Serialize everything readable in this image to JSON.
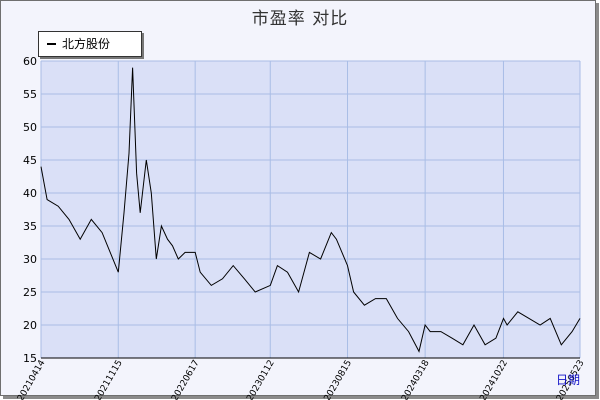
{
  "title": "市盈率  对比",
  "legend": {
    "label": "北方股份"
  },
  "xlabel": "日期",
  "colors": {
    "plot_bg": "#dae0f7",
    "grid": "#a9bde6",
    "line": "#000000",
    "xlabel": "#1414c8"
  },
  "chart_data": {
    "type": "line",
    "title": "市盈率  对比",
    "xlabel": "日期",
    "ylabel": "",
    "ylim": [
      15,
      60
    ],
    "yticks": [
      15,
      20,
      25,
      30,
      35,
      40,
      45,
      50,
      55,
      60
    ],
    "xticks": [
      "20210414",
      "20211115",
      "20220617",
      "20230112",
      "20230815",
      "20240318",
      "20241022",
      "20250523"
    ],
    "grid": true,
    "legend_position": "top-left",
    "series": [
      {
        "name": "北方股份",
        "x": [
          "20210414",
          "20210501",
          "20210601",
          "20210701",
          "20210801",
          "20210901",
          "20211001",
          "20211115",
          "20211201",
          "20211215",
          "20211225",
          "20220105",
          "20220115",
          "20220201",
          "20220215",
          "20220301",
          "20220315",
          "20220401",
          "20220415",
          "20220501",
          "20220520",
          "20220617",
          "20220701",
          "20220801",
          "20220901",
          "20221001",
          "20221101",
          "20221201",
          "20230112",
          "20230201",
          "20230301",
          "20230401",
          "20230501",
          "20230601",
          "20230701",
          "20230715",
          "20230815",
          "20230901",
          "20231001",
          "20231101",
          "20231201",
          "20240101",
          "20240201",
          "20240301",
          "20240318",
          "20240401",
          "20240501",
          "20240601",
          "20240701",
          "20240801",
          "20240901",
          "20241001",
          "20241022",
          "20241101",
          "20241201",
          "20250101",
          "20250201",
          "20250301",
          "20250401",
          "20250501",
          "20250523"
        ],
        "values": [
          44,
          39,
          38,
          36,
          33,
          36,
          34,
          28,
          37,
          46,
          59,
          43,
          37,
          45,
          40,
          30,
          35,
          33,
          32,
          30,
          31,
          31,
          28,
          26,
          27,
          29,
          27,
          25,
          26,
          29,
          28,
          25,
          31,
          30,
          34,
          33,
          29,
          25,
          23,
          24,
          24,
          21,
          19,
          16,
          20,
          19,
          19,
          18,
          17,
          20,
          17,
          18,
          21,
          20,
          22,
          21,
          20,
          21,
          17,
          19,
          21
        ]
      }
    ]
  }
}
